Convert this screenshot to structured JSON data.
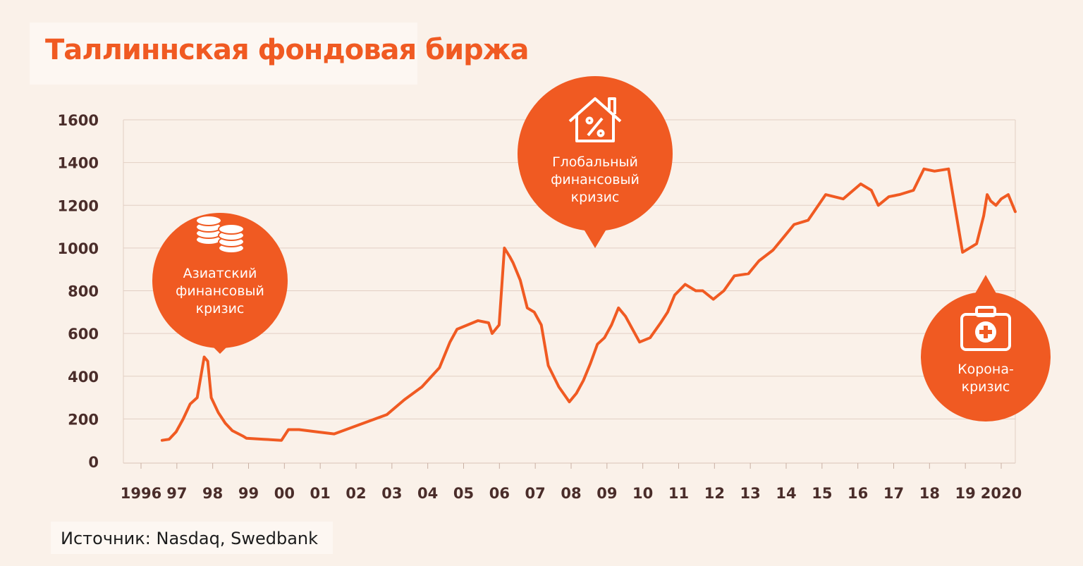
{
  "title": "Таллиннская фондовая биржа",
  "source": "Источник: Nasdaq, Swedbank",
  "colors": {
    "line": "#f05a22",
    "bubble": "#f05a22",
    "background": "#faf1e9",
    "axis_text": "#4a2d2a"
  },
  "annotations": [
    {
      "lines": [
        "Азиатский",
        "финансовый",
        "кризис"
      ],
      "icon": "coins-icon"
    },
    {
      "lines": [
        "Глобальный",
        "финансовый",
        "кризис"
      ],
      "icon": "house-percent-icon"
    },
    {
      "lines": [
        "Корона-",
        "кризис"
      ],
      "icon": "medical-kit-icon"
    }
  ],
  "chart_data": {
    "type": "line",
    "title": "Таллиннская фондовая биржа",
    "xlabel": "",
    "ylabel": "",
    "ylim": [
      0,
      1600
    ],
    "yticks": [
      0,
      200,
      400,
      600,
      800,
      1000,
      1200,
      1400,
      1600
    ],
    "xticks": [
      "1996",
      "97",
      "98",
      "99",
      "00",
      "01",
      "02",
      "03",
      "04",
      "05",
      "06",
      "07",
      "08",
      "09",
      "10",
      "11",
      "12",
      "13",
      "14",
      "15",
      "16",
      "17",
      "18",
      "19",
      "2020"
    ],
    "grid": true,
    "series": [
      {
        "x": [
          1996.6,
          1996.8,
          1997.0,
          1997.2,
          1997.4,
          1997.6,
          1997.8,
          1997.9,
          1998.0,
          1998.2,
          1998.4,
          1998.6,
          1998.9,
          1999.0,
          1999.5,
          2000.0,
          2000.2,
          2000.5,
          2001.0,
          2001.5,
          2002.0,
          2002.5,
          2003.0,
          2003.5,
          2004.0,
          2004.5,
          2004.8,
          2005.0,
          2005.3,
          2005.6,
          2005.9,
          2006.0,
          2006.2,
          2006.35,
          2006.5,
          2006.6,
          2006.8,
          2007.0,
          2007.2,
          2007.4,
          2007.6,
          2007.9,
          2008.2,
          2008.4,
          2008.6,
          2008.8,
          2009.0,
          2009.2,
          2009.4,
          2009.6,
          2009.8,
          2010.0,
          2010.2,
          2010.5,
          2010.8,
          2011.0,
          2011.2,
          2011.5,
          2011.8,
          2012.0,
          2012.3,
          2012.6,
          2012.9,
          2013.3,
          2013.6,
          2014.0,
          2014.3,
          2014.6,
          2015.0,
          2015.5,
          2016.0,
          2016.5,
          2016.8,
          2017.0,
          2017.3,
          2017.6,
          2018.0,
          2018.3,
          2018.6,
          2019.0,
          2019.4,
          2019.8,
          2020.0,
          2020.1,
          2020.2,
          2020.35,
          2020.5,
          2020.7,
          2020.9
        ],
        "y": [
          100,
          105,
          140,
          200,
          270,
          300,
          490,
          470,
          300,
          230,
          180,
          145,
          120,
          110,
          105,
          100,
          150,
          150,
          140,
          130,
          160,
          190,
          220,
          290,
          350,
          440,
          560,
          620,
          640,
          660,
          650,
          600,
          640,
          1000,
          960,
          930,
          850,
          720,
          700,
          640,
          450,
          350,
          280,
          320,
          380,
          460,
          550,
          580,
          640,
          720,
          680,
          620,
          560,
          580,
          650,
          700,
          780,
          830,
          800,
          800,
          760,
          800,
          870,
          880,
          940,
          990,
          1050,
          1110,
          1130,
          1250,
          1230,
          1300,
          1270,
          1200,
          1240,
          1250,
          1270,
          1370,
          1360,
          1370,
          980,
          1020,
          1150,
          1250,
          1220,
          1200,
          1230,
          1250,
          1170
        ]
      }
    ]
  }
}
